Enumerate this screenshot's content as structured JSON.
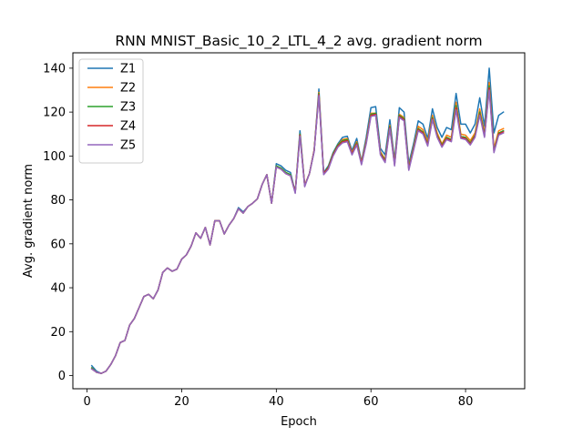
{
  "chart_data": {
    "type": "line",
    "title": "RNN MNIST_Basic_10_2_LTL_4_2 avg. gradient norm",
    "xlabel": "Epoch",
    "ylabel": "Avg. gradient norm",
    "xlim": [
      -3,
      92.5
    ],
    "ylim": [
      -6,
      147
    ],
    "xticks": [
      0,
      20,
      40,
      60,
      80
    ],
    "yticks": [
      0,
      20,
      40,
      60,
      80,
      100,
      120,
      140
    ],
    "grid": false,
    "legend_position": "top-left",
    "x": [
      1,
      2,
      3,
      4,
      5,
      6,
      7,
      8,
      9,
      10,
      11,
      12,
      13,
      14,
      15,
      16,
      17,
      18,
      19,
      20,
      21,
      22,
      23,
      24,
      25,
      26,
      27,
      28,
      29,
      30,
      31,
      32,
      33,
      34,
      35,
      36,
      37,
      38,
      39,
      40,
      41,
      42,
      43,
      44,
      45,
      46,
      47,
      48,
      49,
      50,
      51,
      52,
      53,
      54,
      55,
      56,
      57,
      58,
      59,
      60,
      61,
      62,
      63,
      64,
      65,
      66,
      67,
      68,
      69,
      70,
      71,
      72,
      73,
      74,
      75,
      76,
      77,
      78,
      79,
      80,
      81,
      82,
      83,
      84,
      85,
      86,
      87,
      88
    ],
    "series": [
      {
        "name": "Z1",
        "color": "#1f77b4",
        "values": [
          4.5,
          2,
          1,
          2,
          5,
          9,
          15,
          16,
          23,
          26,
          31,
          36,
          37,
          35,
          39,
          47,
          49,
          47.5,
          48.5,
          53,
          55,
          59,
          65,
          62.5,
          67.5,
          59.5,
          70.5,
          70.5,
          64.5,
          68.5,
          71.5,
          76.5,
          74.5,
          77,
          78.5,
          80.5,
          87,
          91.5,
          78.5,
          96.5,
          95.5,
          93.5,
          92.5,
          83.5,
          111.5,
          86.5,
          92,
          102.5,
          130.5,
          92.5,
          95.5,
          101.5,
          105.5,
          108.5,
          109,
          102.5,
          108,
          97.5,
          108.5,
          122,
          122.5,
          103.5,
          100.5,
          116.5,
          98,
          122,
          120,
          96.5,
          105.5,
          116,
          114.5,
          108,
          121.5,
          113,
          108.5,
          113,
          112,
          128.5,
          114.5,
          114.5,
          110.5,
          114.5,
          126.5,
          113.5,
          140,
          110.5,
          118.5,
          120
        ]
      },
      {
        "name": "Z2",
        "color": "#ff7f0e",
        "values": [
          3.5,
          1.5,
          1,
          2,
          5,
          9,
          15,
          16,
          23,
          26,
          31,
          36,
          37,
          35,
          39,
          47,
          49,
          47.5,
          48.5,
          53,
          55,
          59,
          65,
          62.5,
          67.5,
          59.5,
          70.5,
          70.5,
          64.5,
          68.5,
          71.5,
          76,
          74,
          77,
          78.5,
          80.5,
          87,
          91.5,
          78.5,
          95.5,
          94.5,
          92.5,
          91.5,
          83.5,
          110,
          86.5,
          92,
          102.5,
          129,
          92,
          95,
          101,
          105,
          107.5,
          108,
          101.5,
          106.5,
          97,
          107,
          119.5,
          119.5,
          102,
          98.5,
          114,
          97,
          119,
          117.5,
          95,
          104,
          113.5,
          112,
          106.5,
          118.5,
          110.5,
          105.5,
          109.5,
          108.5,
          124.5,
          110,
          109.5,
          107,
          110.5,
          121.5,
          110.5,
          133.5,
          103.5,
          111.5,
          112.5
        ]
      },
      {
        "name": "Z3",
        "color": "#2ca02c",
        "values": [
          3.5,
          1.5,
          1,
          2,
          5,
          9,
          15,
          16,
          23,
          26,
          31,
          36,
          37,
          35,
          39,
          47,
          49,
          47.5,
          48.5,
          53,
          55,
          59,
          65,
          62.5,
          67.5,
          59.5,
          70.5,
          70.5,
          64.5,
          68.5,
          71.5,
          76,
          74,
          77,
          78.5,
          80.5,
          87,
          91.5,
          78.5,
          95.5,
          94.5,
          92.5,
          91.5,
          83.5,
          110,
          86.5,
          92,
          102.5,
          128.5,
          92,
          95,
          101,
          105,
          107,
          107.5,
          101,
          106,
          96.5,
          106.5,
          119,
          119.5,
          101.5,
          98,
          113.5,
          96.5,
          118.5,
          117,
          94.5,
          103.5,
          112.5,
          111,
          105.5,
          117.5,
          109.5,
          105,
          108.5,
          107.5,
          123,
          109,
          108.5,
          106,
          109.5,
          120,
          109.5,
          132,
          102.5,
          110.5,
          111.5
        ]
      },
      {
        "name": "Z4",
        "color": "#d62728",
        "values": [
          3,
          1.5,
          1,
          2,
          5,
          9,
          15,
          16,
          23,
          26,
          31,
          36,
          37,
          35,
          39,
          47,
          49,
          47.5,
          48.5,
          53,
          55,
          59,
          65,
          62.5,
          67.5,
          59.5,
          70.5,
          70.5,
          64.5,
          68.5,
          71.5,
          76,
          74,
          77,
          78.5,
          80.5,
          87,
          91.5,
          78.5,
          95,
          94,
          92,
          91,
          83.5,
          109.5,
          86.5,
          92,
          102.5,
          128,
          92,
          94.5,
          100.5,
          104.5,
          106.5,
          107,
          101,
          105.5,
          96.5,
          106,
          118.5,
          119,
          101,
          97.5,
          113,
          96,
          118,
          116.5,
          94,
          103,
          112,
          110.5,
          105,
          117,
          109,
          104.5,
          108,
          107,
          122,
          108.5,
          108,
          105.5,
          109,
          119,
          109,
          131,
          102,
          110,
          111
        ]
      },
      {
        "name": "Z5",
        "color": "#9467bd",
        "values": [
          3,
          1.5,
          1,
          2,
          5,
          9,
          15,
          16,
          23,
          26,
          31,
          36,
          37,
          35,
          39,
          47,
          49,
          47.5,
          48.5,
          53,
          55,
          59,
          65,
          62.5,
          67.5,
          59.5,
          70.5,
          70.5,
          64.5,
          68.5,
          71.5,
          76,
          74,
          77,
          78.5,
          80.5,
          87,
          91.5,
          78.5,
          95,
          94,
          92,
          91,
          83,
          109,
          86,
          92,
          102,
          127.5,
          91.5,
          94,
          100,
          104,
          106,
          106.5,
          100.5,
          105,
          96,
          105.5,
          118,
          118.5,
          100.5,
          97,
          112.5,
          95.5,
          117.5,
          116,
          93.5,
          102.5,
          111.5,
          110,
          104.5,
          116.5,
          108.5,
          104,
          107.5,
          106.5,
          121,
          108,
          107.5,
          105,
          108.5,
          118.5,
          108.5,
          130,
          101.5,
          109.5,
          110.5
        ]
      }
    ]
  }
}
